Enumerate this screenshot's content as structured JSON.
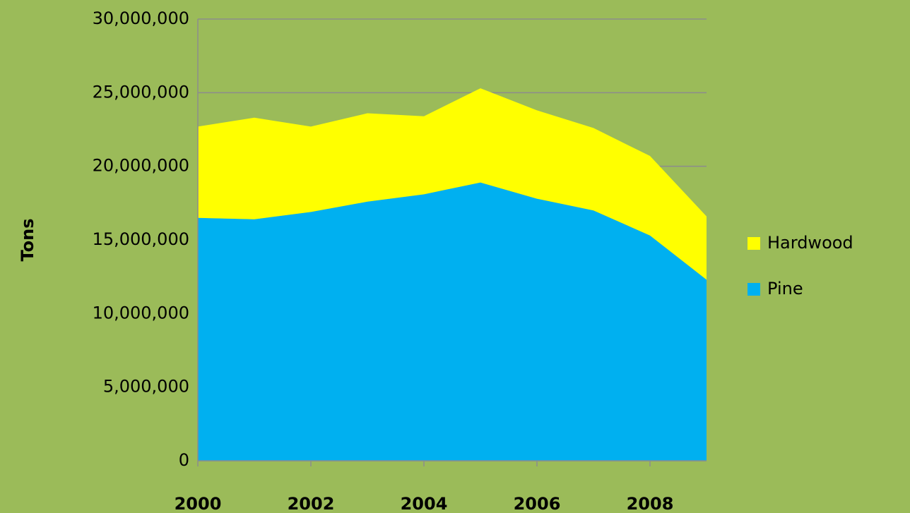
{
  "chart_data": {
    "type": "stacked_area",
    "y_label": "Tons",
    "x": [
      2000,
      2001,
      2002,
      2003,
      2004,
      2005,
      2006,
      2007,
      2008,
      2009
    ],
    "series": [
      {
        "name": "Pine",
        "color": "#00b0f0",
        "values": [
          16500000,
          16400000,
          16900000,
          17600000,
          18100000,
          18900000,
          17800000,
          17000000,
          15300000,
          12300000
        ]
      },
      {
        "name": "Hardwood",
        "color": "#ffff00",
        "values": [
          6200000,
          6900000,
          5800000,
          6000000,
          5300000,
          6400000,
          6000000,
          5600000,
          5400000,
          4300000
        ]
      }
    ],
    "xlim": [
      2000,
      2009
    ],
    "xticks": [
      2000,
      2002,
      2004,
      2006,
      2008
    ],
    "ylim": [
      0,
      30000000
    ],
    "yticks": [
      0,
      {
        "value": 5000000,
        "label": "5,000,000"
      },
      {
        "value": 10000000,
        "label": "10,000,000"
      },
      {
        "value": 15000000,
        "label": "15,000,000"
      },
      {
        "value": 20000000,
        "label": "20,000,000"
      },
      {
        "value": 25000000,
        "label": "25,000,000"
      },
      {
        "value": 30000000,
        "label": "30,000,000"
      }
    ],
    "grid": true,
    "legend": "right"
  }
}
